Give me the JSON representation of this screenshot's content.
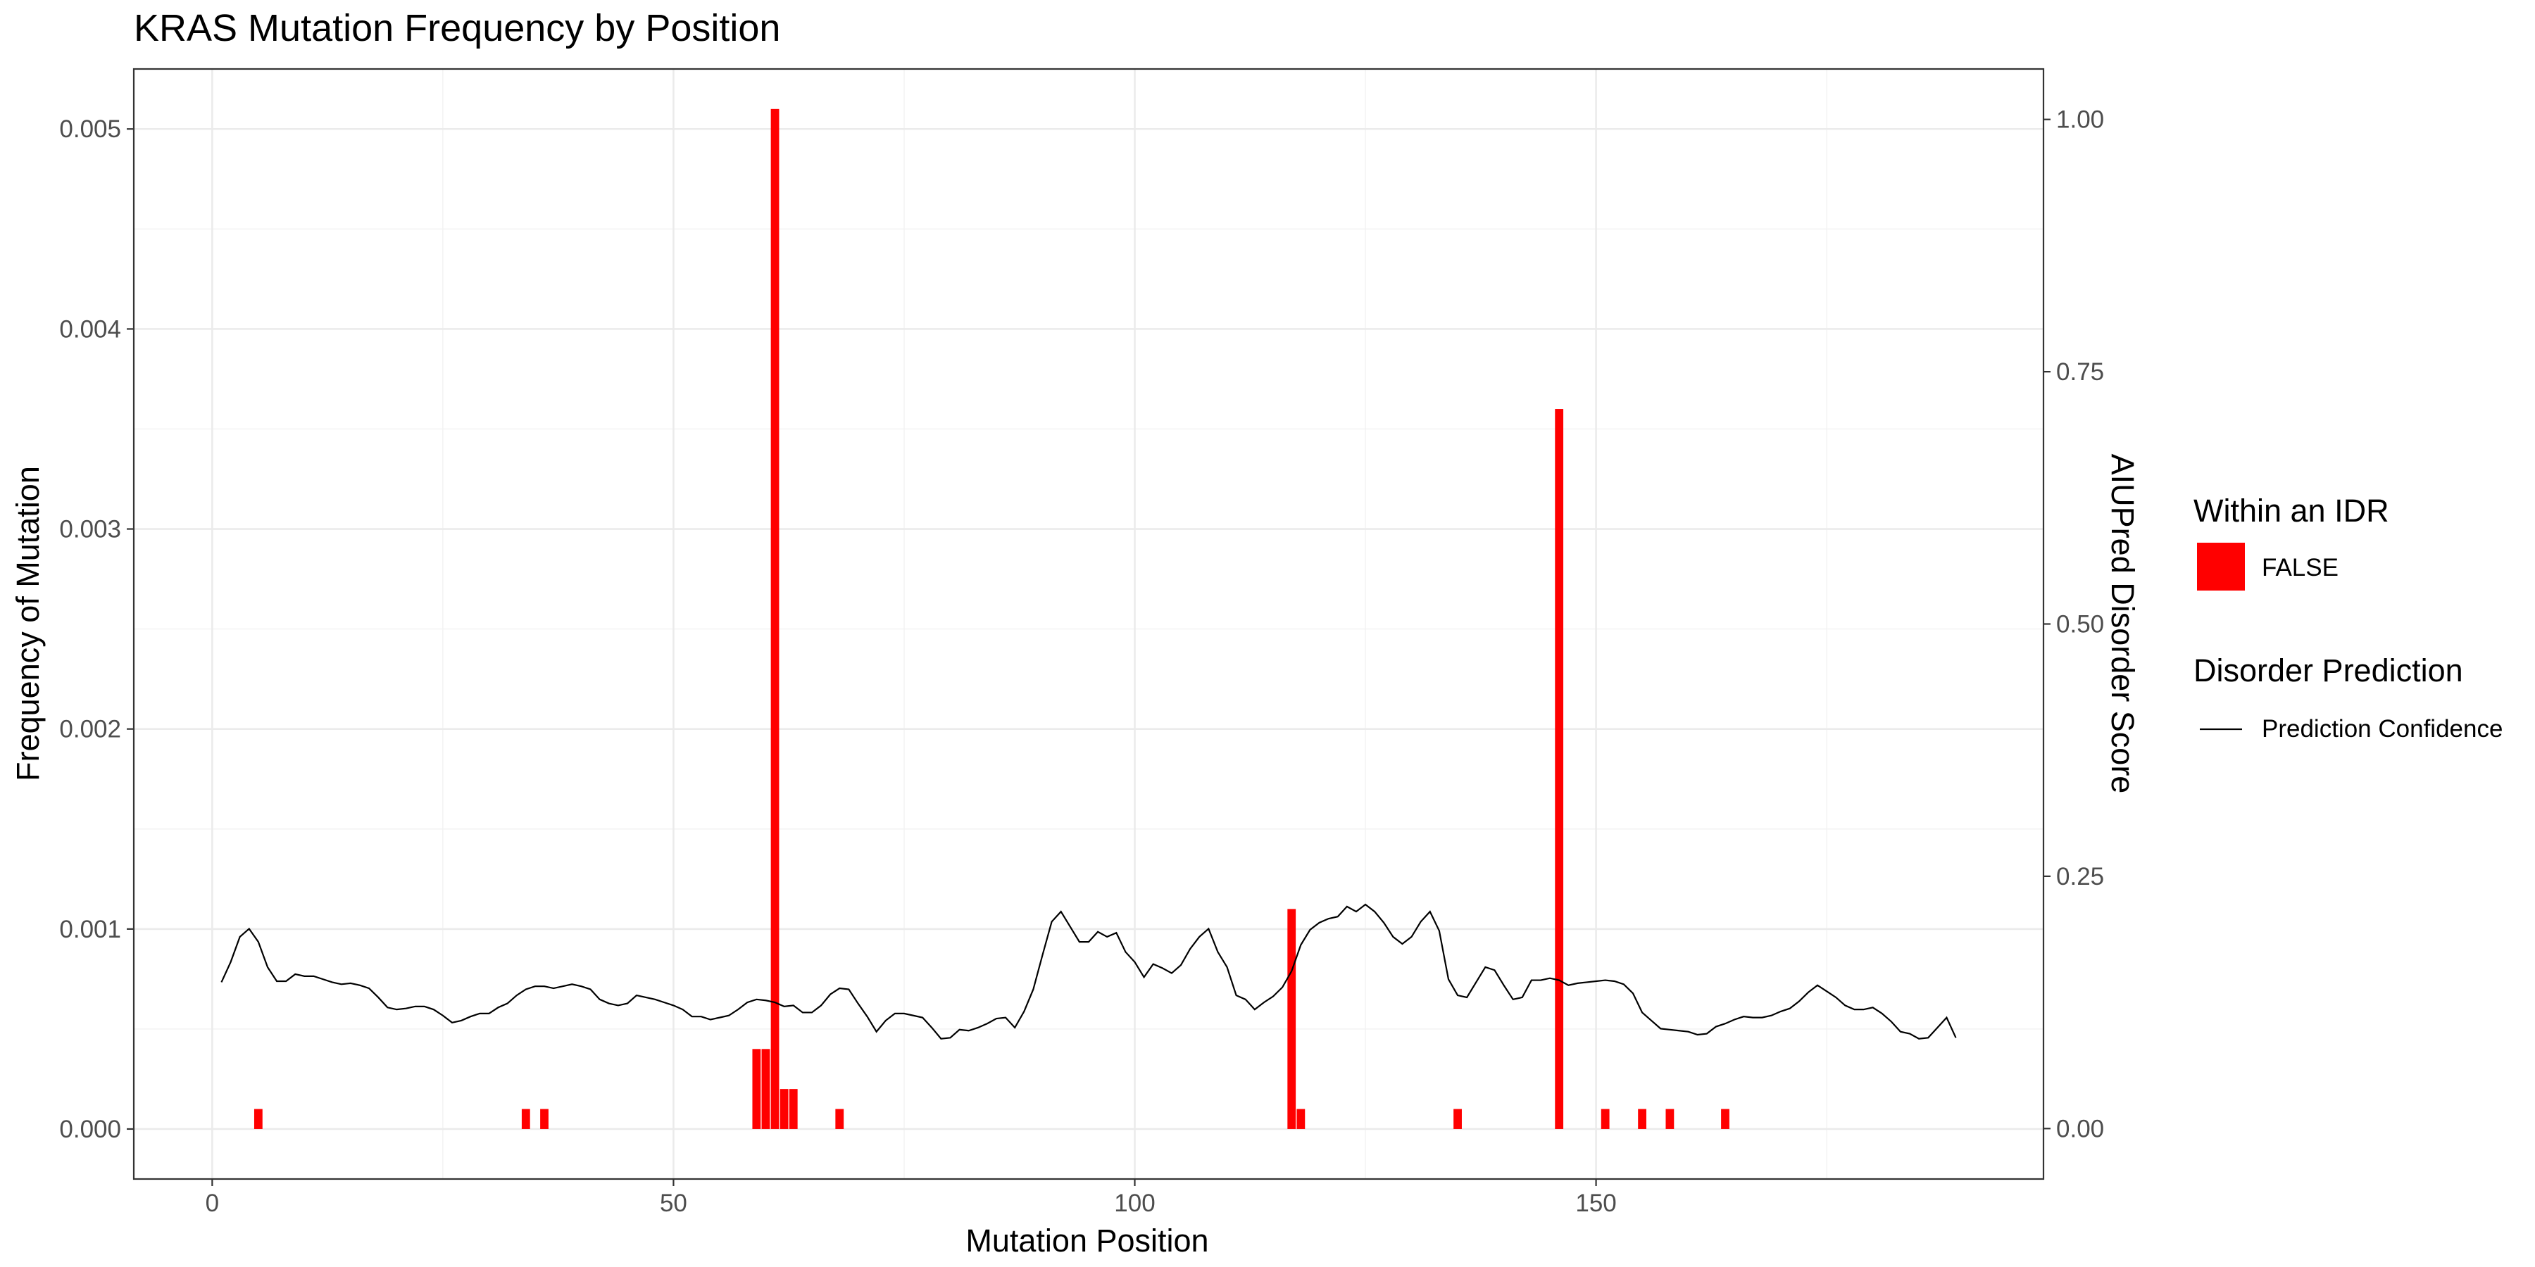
{
  "chart_data": {
    "type": "bar",
    "title": "KRAS Mutation Frequency by Position",
    "xlabel": "Mutation Position",
    "ylabel": "Frequency of Mutation",
    "y2label": "AIUPred Disorder Score",
    "xlim": [
      -8.5,
      198.5
    ],
    "ylim": [
      -0.00025,
      0.0053
    ],
    "y2lim": [
      -0.05,
      1.05
    ],
    "x_ticks": [
      0,
      50,
      100,
      150
    ],
    "y_ticks": [
      0,
      0.001,
      0.002,
      0.003,
      0.004,
      0.005
    ],
    "y_tick_labels": [
      "0.000",
      "0.001",
      "0.002",
      "0.003",
      "0.004",
      "0.005"
    ],
    "y2_ticks": [
      0,
      0.25,
      0.5,
      0.75,
      1.0
    ],
    "y2_tick_labels": [
      "0.00",
      "0.25",
      "0.50",
      "0.75",
      "1.00"
    ],
    "grid": true,
    "bar_color": "#ff0000",
    "line_color": "#000000",
    "legend_position": "right",
    "legend": {
      "fill_title": "Within an IDR",
      "fill_label": "FALSE",
      "line_title": "Disorder Prediction",
      "line_label": "Prediction Confidence"
    },
    "bars": {
      "name": "FALSE",
      "x": [
        5,
        34,
        36,
        59,
        60,
        61,
        62,
        63,
        68,
        117,
        118,
        135,
        146,
        151,
        155,
        158,
        164
      ],
      "values": [
        0.0001,
        0.0001,
        0.0001,
        0.0004,
        0.0004,
        0.0051,
        0.0002,
        0.0002,
        0.0001,
        0.0011,
        0.0001,
        0.0001,
        0.0036,
        0.0001,
        0.0001,
        0.0001,
        0.0001
      ]
    },
    "line": {
      "name": "Prediction Confidence",
      "x": [
        1,
        2,
        3,
        4,
        5,
        6,
        7,
        8,
        9,
        10,
        11,
        12,
        13,
        14,
        15,
        16,
        17,
        18,
        19,
        20,
        21,
        22,
        23,
        24,
        25,
        26,
        27,
        28,
        29,
        30,
        31,
        32,
        33,
        34,
        35,
        36,
        37,
        38,
        39,
        40,
        41,
        42,
        43,
        44,
        45,
        46,
        47,
        48,
        49,
        50,
        51,
        52,
        53,
        54,
        55,
        56,
        57,
        58,
        59,
        60,
        61,
        62,
        63,
        64,
        65,
        66,
        67,
        68,
        69,
        70,
        71,
        72,
        73,
        74,
        75,
        76,
        77,
        78,
        79,
        80,
        81,
        82,
        83,
        84,
        85,
        86,
        87,
        88,
        89,
        90,
        91,
        92,
        93,
        94,
        95,
        96,
        97,
        98,
        99,
        100,
        101,
        102,
        103,
        104,
        105,
        106,
        107,
        108,
        109,
        110,
        111,
        112,
        113,
        114,
        115,
        116,
        117,
        118,
        119,
        120,
        121,
        122,
        123,
        124,
        125,
        126,
        127,
        128,
        129,
        130,
        131,
        132,
        133,
        134,
        135,
        136,
        137,
        138,
        139,
        140,
        141,
        142,
        143,
        144,
        145,
        146,
        147,
        148,
        149,
        150,
        151,
        152,
        153,
        154,
        155,
        156,
        157,
        158,
        159,
        160,
        161,
        162,
        163,
        164,
        165,
        166,
        167,
        168,
        169,
        170,
        171,
        172,
        173,
        174,
        175,
        176,
        177,
        178,
        179,
        180,
        181,
        182,
        183,
        184,
        185,
        186,
        187,
        188,
        189
      ],
      "values": [
        0.145,
        0.165,
        0.19,
        0.198,
        0.185,
        0.16,
        0.146,
        0.146,
        0.153,
        0.151,
        0.151,
        0.148,
        0.145,
        0.143,
        0.144,
        0.142,
        0.139,
        0.13,
        0.12,
        0.118,
        0.119,
        0.121,
        0.121,
        0.118,
        0.112,
        0.105,
        0.107,
        0.111,
        0.114,
        0.114,
        0.12,
        0.124,
        0.132,
        0.138,
        0.141,
        0.141,
        0.139,
        0.141,
        0.143,
        0.141,
        0.138,
        0.128,
        0.124,
        0.122,
        0.124,
        0.132,
        0.13,
        0.128,
        0.125,
        0.122,
        0.118,
        0.111,
        0.111,
        0.108,
        0.11,
        0.112,
        0.118,
        0.125,
        0.128,
        0.127,
        0.125,
        0.121,
        0.122,
        0.115,
        0.115,
        0.122,
        0.133,
        0.139,
        0.138,
        0.124,
        0.111,
        0.096,
        0.107,
        0.114,
        0.114,
        0.112,
        0.11,
        0.1,
        0.089,
        0.09,
        0.098,
        0.097,
        0.1,
        0.104,
        0.109,
        0.11,
        0.1,
        0.116,
        0.138,
        0.172,
        0.205,
        0.215,
        0.2,
        0.185,
        0.185,
        0.195,
        0.19,
        0.194,
        0.175,
        0.165,
        0.15,
        0.163,
        0.159,
        0.154,
        0.162,
        0.178,
        0.19,
        0.198,
        0.175,
        0.16,
        0.132,
        0.128,
        0.118,
        0.125,
        0.131,
        0.14,
        0.156,
        0.182,
        0.197,
        0.204,
        0.208,
        0.21,
        0.22,
        0.215,
        0.222,
        0.215,
        0.204,
        0.19,
        0.183,
        0.19,
        0.205,
        0.215,
        0.196,
        0.148,
        0.132,
        0.13,
        0.145,
        0.16,
        0.157,
        0.142,
        0.128,
        0.13,
        0.147,
        0.147,
        0.149,
        0.147,
        0.142,
        0.144,
        0.145,
        0.146,
        0.147,
        0.146,
        0.143,
        0.134,
        0.115,
        0.107,
        0.099,
        0.098,
        0.097,
        0.096,
        0.093,
        0.094,
        0.101,
        0.104,
        0.108,
        0.111,
        0.11,
        0.11,
        0.112,
        0.116,
        0.119,
        0.126,
        0.135,
        0.142,
        0.136,
        0.13,
        0.122,
        0.118,
        0.118,
        0.12,
        0.114,
        0.106,
        0.096,
        0.094,
        0.089,
        0.09,
        0.1,
        0.11,
        0.09
      ]
    }
  }
}
